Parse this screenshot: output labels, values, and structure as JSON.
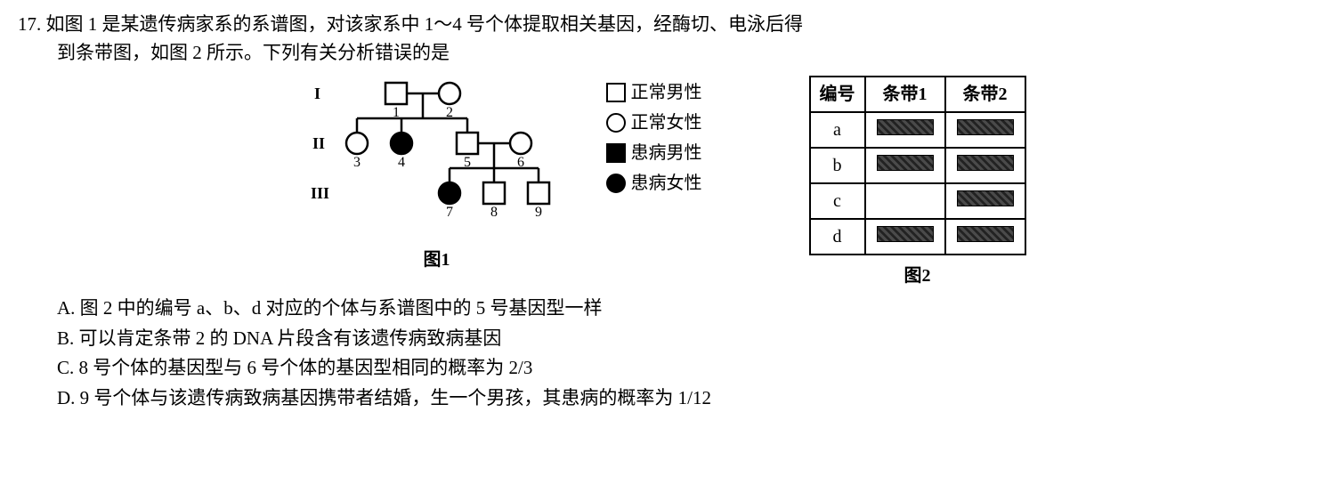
{
  "question": {
    "number": "17.",
    "line1": "如图 1 是某遗传病家系的系谱图，对该家系中 1～4 号个体提取相关基因，经酶切、电泳后得",
    "line2": "到条带图，如图 2 所示。下列有关分析错误的是"
  },
  "pedigree": {
    "generations": [
      "I",
      "II",
      "III"
    ],
    "labels": {
      "p1": "1",
      "p2": "2",
      "p3": "3",
      "p4": "4",
      "p5": "5",
      "p6": "6",
      "p7": "7",
      "p8": "8",
      "p9": "9"
    },
    "caption": "图1"
  },
  "legend": {
    "normal_male": "正常男性",
    "normal_female": "正常女性",
    "affected_male": "患病男性",
    "affected_female": "患病女性"
  },
  "gel": {
    "caption": "图2",
    "headers": {
      "id": "编号",
      "band1": "条带1",
      "band2": "条带2"
    },
    "rows": [
      {
        "id": "a",
        "band1": true,
        "band2": true
      },
      {
        "id": "b",
        "band1": true,
        "band2": true
      },
      {
        "id": "c",
        "band1": false,
        "band2": true
      },
      {
        "id": "d",
        "band1": true,
        "band2": true
      }
    ]
  },
  "options": {
    "A": "A. 图 2 中的编号 a、b、d 对应的个体与系谱图中的 5 号基因型一样",
    "B": "B. 可以肯定条带 2 的 DNA 片段含有该遗传病致病基因",
    "C": "C. 8 号个体的基因型与 6 号个体的基因型相同的概率为 2/3",
    "D": "D. 9 号个体与该遗传病致病基因携带者结婚，生一个男孩，其患病的概率为 1/12"
  },
  "style": {
    "stroke": "#000000",
    "fill_affected": "#000000",
    "bg": "#ffffff",
    "font_main": 21,
    "font_label": 20
  }
}
